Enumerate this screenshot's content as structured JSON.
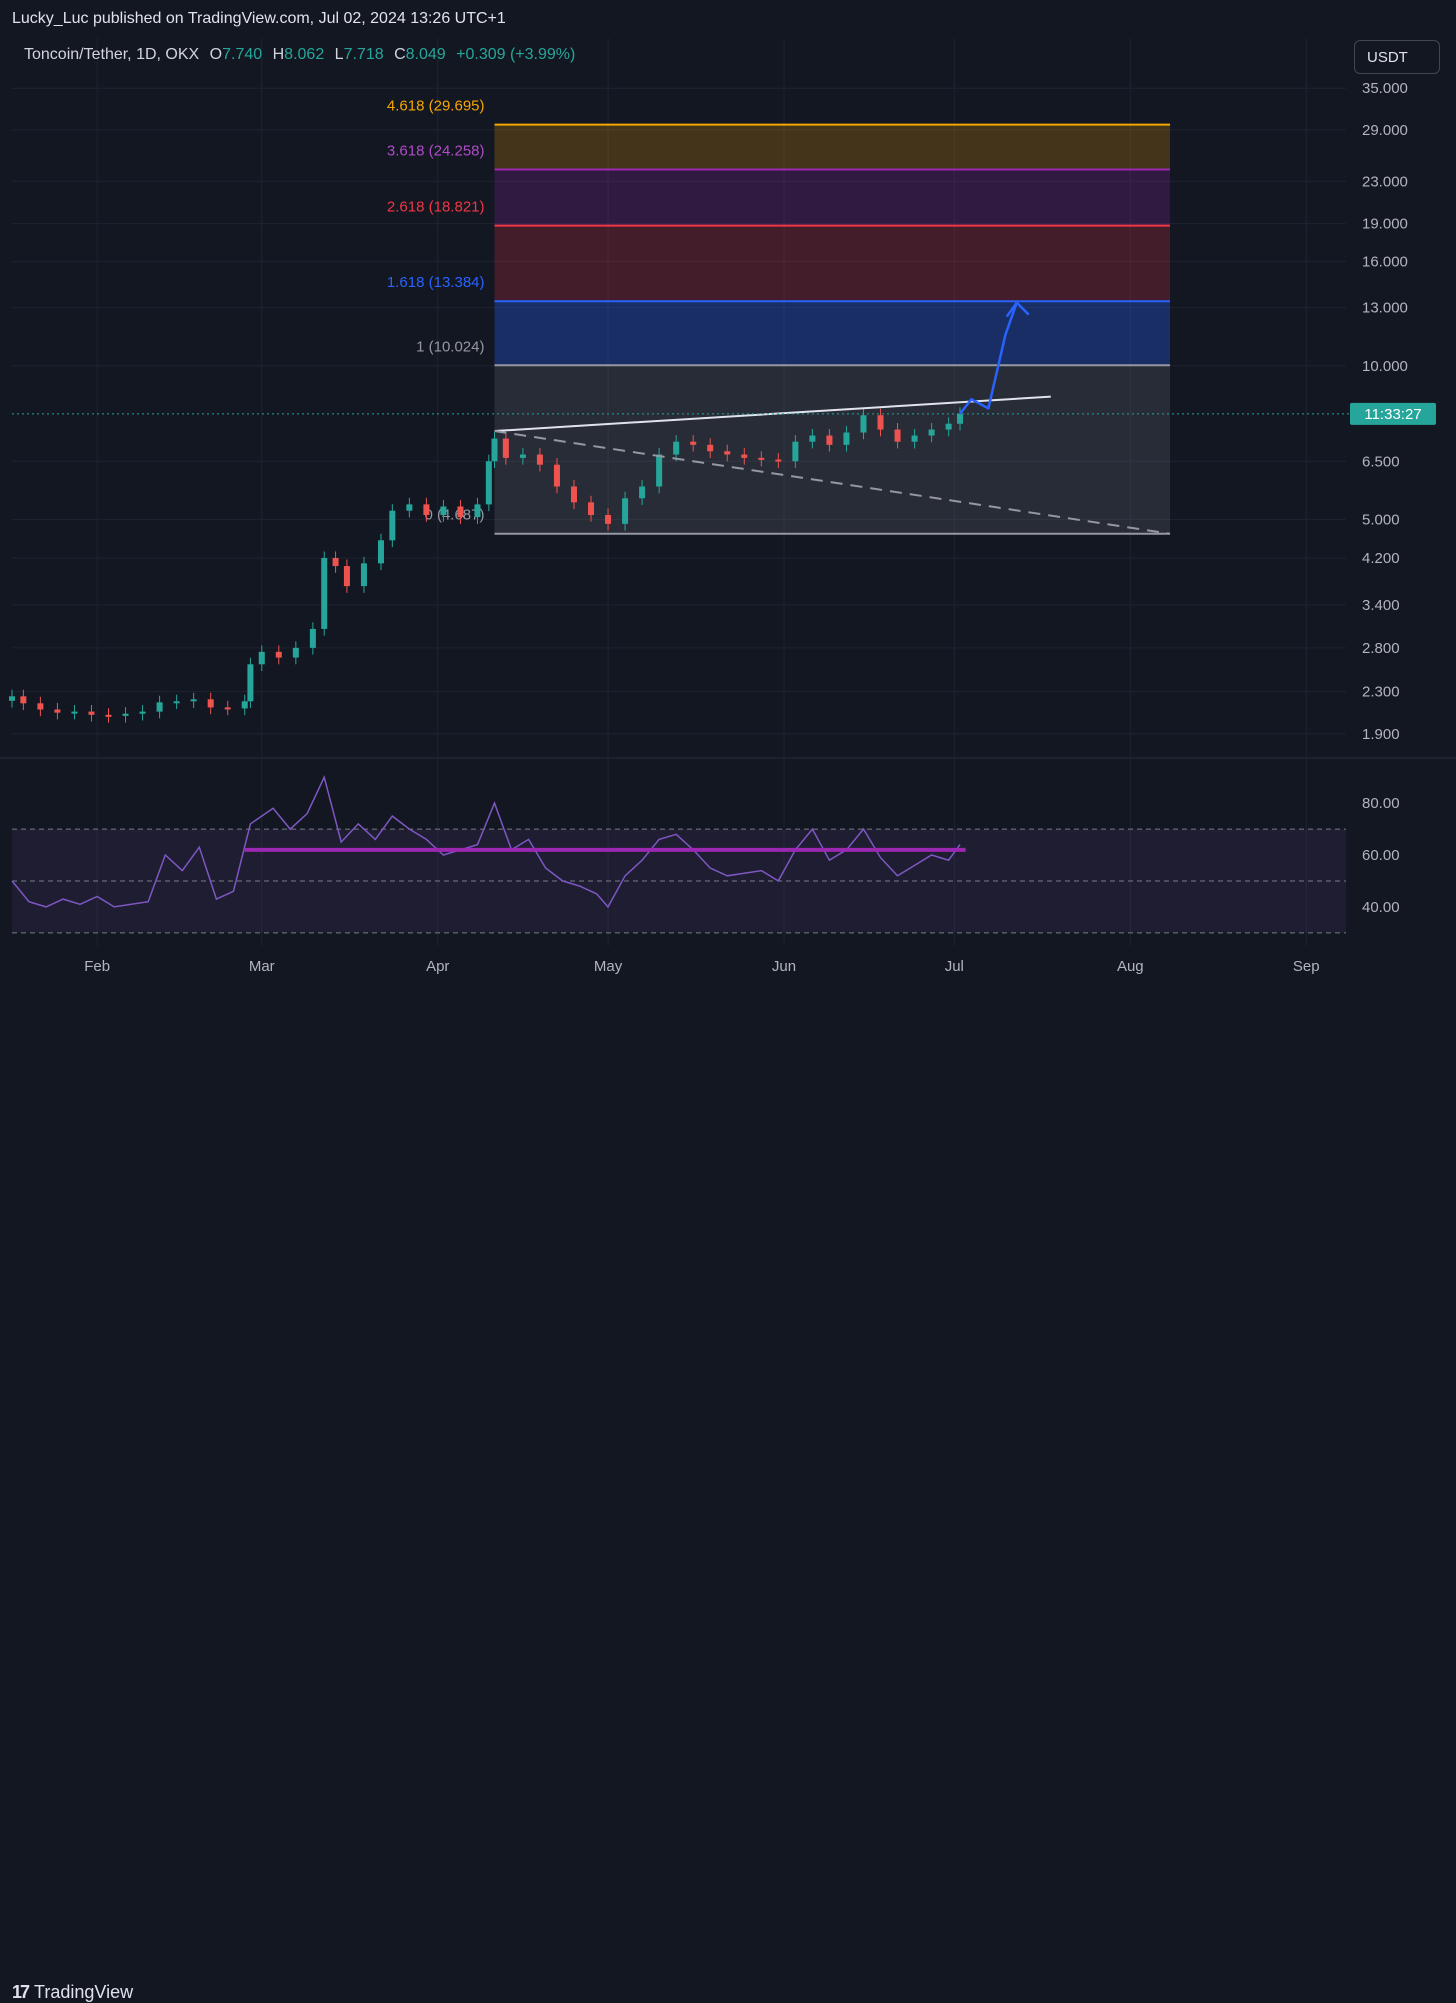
{
  "header": {
    "publisher_line": "Lucky_Luc published on TradingView.com, Jul 02, 2024 13:26 UTC+1",
    "symbol": "Toncoin/Tether, 1D, OKX",
    "ohlc": {
      "o_label": "O",
      "o": "7.740",
      "h_label": "H",
      "h": "8.062",
      "l_label": "L",
      "l": "7.718",
      "c_label": "C",
      "c": "8.049"
    },
    "change": "+0.309 (+3.99%)",
    "currency": "USDT"
  },
  "footer": {
    "brand": "TradingView",
    "logo_mark": "17"
  },
  "price_axis": {
    "labels": [
      "35.000",
      "29.000",
      "23.000",
      "19.000",
      "16.000",
      "13.000",
      "10.000",
      "6.500",
      "5.000",
      "4.200",
      "3.400",
      "2.800",
      "2.300",
      "1.900"
    ],
    "countdown": "11:33:27"
  },
  "rsi_axis": {
    "labels": [
      "80.00",
      "60.00",
      "40.00"
    ]
  },
  "time_axis": {
    "labels": [
      "Feb",
      "Mar",
      "Apr",
      "May",
      "Jun",
      "Jul",
      "Aug",
      "Sep"
    ]
  },
  "fib_labels": [
    {
      "text": "4.618 (29.695)",
      "color": "#f7a600"
    },
    {
      "text": "3.618 (24.258)",
      "color": "#b04bc8"
    },
    {
      "text": "2.618 (18.821)",
      "color": "#f23645"
    },
    {
      "text": "1.618 (13.384)",
      "color": "#2962ff"
    },
    {
      "text": "1 (10.024)",
      "color": "#9598a1"
    },
    {
      "text": "0 (4.687)",
      "color": "#9598a1"
    }
  ],
  "colors": {
    "background": "#131722",
    "up": "#26a69a",
    "down": "#ef5350",
    "rsi": "#7e57c2",
    "accent_arrow": "#2962ff"
  },
  "chart_data": {
    "type": "candlestick",
    "title": "Toncoin/Tether, 1D, OKX",
    "y_scale": "log",
    "ylim": [
      1.75,
      38
    ],
    "x_range": [
      "2024-01-17",
      "2024-09-08"
    ],
    "fib_levels": [
      {
        "ratio": 0,
        "price": 4.687
      },
      {
        "ratio": 1,
        "price": 10.024
      },
      {
        "ratio": 1.618,
        "price": 13.384
      },
      {
        "ratio": 2.618,
        "price": 18.821
      },
      {
        "ratio": 3.618,
        "price": 24.258
      },
      {
        "ratio": 4.618,
        "price": 29.695
      }
    ],
    "fib_range": [
      "2024-04-11",
      "2024-08-08"
    ],
    "close_series": [
      [
        "2024-01-17",
        2.25
      ],
      [
        "2024-01-19",
        2.18
      ],
      [
        "2024-01-22",
        2.12
      ],
      [
        "2024-01-25",
        2.09
      ],
      [
        "2024-01-28",
        2.1
      ],
      [
        "2024-01-31",
        2.07
      ],
      [
        "2024-02-03",
        2.06
      ],
      [
        "2024-02-06",
        2.08
      ],
      [
        "2024-02-09",
        2.1
      ],
      [
        "2024-02-12",
        2.19
      ],
      [
        "2024-02-15",
        2.2
      ],
      [
        "2024-02-18",
        2.22
      ],
      [
        "2024-02-21",
        2.14
      ],
      [
        "2024-02-24",
        2.13
      ],
      [
        "2024-02-27",
        2.2
      ],
      [
        "2024-02-28",
        2.6
      ],
      [
        "2024-03-01",
        2.75
      ],
      [
        "2024-03-04",
        2.68
      ],
      [
        "2024-03-07",
        2.8
      ],
      [
        "2024-03-10",
        3.05
      ],
      [
        "2024-03-12",
        4.2
      ],
      [
        "2024-03-14",
        4.05
      ],
      [
        "2024-03-16",
        3.7
      ],
      [
        "2024-03-19",
        4.1
      ],
      [
        "2024-03-22",
        4.55
      ],
      [
        "2024-03-24",
        5.2
      ],
      [
        "2024-03-27",
        5.35
      ],
      [
        "2024-03-30",
        5.1
      ],
      [
        "2024-04-02",
        5.3
      ],
      [
        "2024-04-05",
        5.05
      ],
      [
        "2024-04-08",
        5.35
      ],
      [
        "2024-04-10",
        6.5
      ],
      [
        "2024-04-11",
        7.2
      ],
      [
        "2024-04-13",
        6.6
      ],
      [
        "2024-04-16",
        6.7
      ],
      [
        "2024-04-19",
        6.4
      ],
      [
        "2024-04-22",
        5.8
      ],
      [
        "2024-04-25",
        5.4
      ],
      [
        "2024-04-28",
        5.1
      ],
      [
        "2024-05-01",
        4.9
      ],
      [
        "2024-05-04",
        5.5
      ],
      [
        "2024-05-07",
        5.8
      ],
      [
        "2024-05-10",
        6.7
      ],
      [
        "2024-05-13",
        7.1
      ],
      [
        "2024-05-16",
        7.0
      ],
      [
        "2024-05-19",
        6.8
      ],
      [
        "2024-05-22",
        6.7
      ],
      [
        "2024-05-25",
        6.6
      ],
      [
        "2024-05-28",
        6.55
      ],
      [
        "2024-05-31",
        6.5
      ],
      [
        "2024-06-03",
        7.1
      ],
      [
        "2024-06-06",
        7.3
      ],
      [
        "2024-06-09",
        7.0
      ],
      [
        "2024-06-12",
        7.4
      ],
      [
        "2024-06-15",
        8.0
      ],
      [
        "2024-06-18",
        7.5
      ],
      [
        "2024-06-21",
        7.1
      ],
      [
        "2024-06-24",
        7.3
      ],
      [
        "2024-06-27",
        7.5
      ],
      [
        "2024-06-30",
        7.7
      ],
      [
        "2024-07-02",
        8.05
      ]
    ],
    "projection": [
      [
        "2024-07-02",
        8.05
      ],
      [
        "2024-07-04",
        8.6
      ],
      [
        "2024-07-07",
        8.25
      ],
      [
        "2024-07-10",
        11.5
      ],
      [
        "2024-07-12",
        13.3
      ]
    ],
    "trendlines": [
      {
        "from": [
          "2024-04-11",
          7.45
        ],
        "to": [
          "2024-07-18",
          8.7
        ],
        "style": "solid"
      },
      {
        "from": [
          "2024-04-11",
          7.45
        ],
        "to": [
          "2024-08-08",
          4.687
        ],
        "style": "dashed"
      }
    ],
    "rsi": {
      "ylim": [
        28,
        92
      ],
      "bands": [
        70,
        50,
        30
      ],
      "support_level": 62,
      "series": [
        [
          "2024-01-17",
          50
        ],
        [
          "2024-01-20",
          42
        ],
        [
          "2024-01-23",
          40
        ],
        [
          "2024-01-26",
          43
        ],
        [
          "2024-01-29",
          41
        ],
        [
          "2024-02-01",
          44
        ],
        [
          "2024-02-04",
          40
        ],
        [
          "2024-02-07",
          41
        ],
        [
          "2024-02-10",
          42
        ],
        [
          "2024-02-13",
          60
        ],
        [
          "2024-02-16",
          54
        ],
        [
          "2024-02-19",
          63
        ],
        [
          "2024-02-22",
          43
        ],
        [
          "2024-02-25",
          46
        ],
        [
          "2024-02-28",
          72
        ],
        [
          "2024-03-03",
          78
        ],
        [
          "2024-03-06",
          70
        ],
        [
          "2024-03-09",
          76
        ],
        [
          "2024-03-12",
          90
        ],
        [
          "2024-03-15",
          65
        ],
        [
          "2024-03-18",
          72
        ],
        [
          "2024-03-21",
          66
        ],
        [
          "2024-03-24",
          75
        ],
        [
          "2024-03-27",
          70
        ],
        [
          "2024-03-30",
          66
        ],
        [
          "2024-04-02",
          60
        ],
        [
          "2024-04-05",
          62
        ],
        [
          "2024-04-08",
          64
        ],
        [
          "2024-04-11",
          80
        ],
        [
          "2024-04-14",
          62
        ],
        [
          "2024-04-17",
          66
        ],
        [
          "2024-04-20",
          55
        ],
        [
          "2024-04-23",
          50
        ],
        [
          "2024-04-26",
          48
        ],
        [
          "2024-04-29",
          45
        ],
        [
          "2024-05-01",
          40
        ],
        [
          "2024-05-04",
          52
        ],
        [
          "2024-05-07",
          58
        ],
        [
          "2024-05-10",
          66
        ],
        [
          "2024-05-13",
          68
        ],
        [
          "2024-05-16",
          62
        ],
        [
          "2024-05-19",
          55
        ],
        [
          "2024-05-22",
          52
        ],
        [
          "2024-05-25",
          53
        ],
        [
          "2024-05-28",
          54
        ],
        [
          "2024-05-31",
          50
        ],
        [
          "2024-06-03",
          62
        ],
        [
          "2024-06-06",
          70
        ],
        [
          "2024-06-09",
          58
        ],
        [
          "2024-06-12",
          62
        ],
        [
          "2024-06-15",
          70
        ],
        [
          "2024-06-18",
          59
        ],
        [
          "2024-06-21",
          52
        ],
        [
          "2024-06-24",
          56
        ],
        [
          "2024-06-27",
          60
        ],
        [
          "2024-06-30",
          58
        ],
        [
          "2024-07-02",
          64
        ]
      ]
    }
  }
}
